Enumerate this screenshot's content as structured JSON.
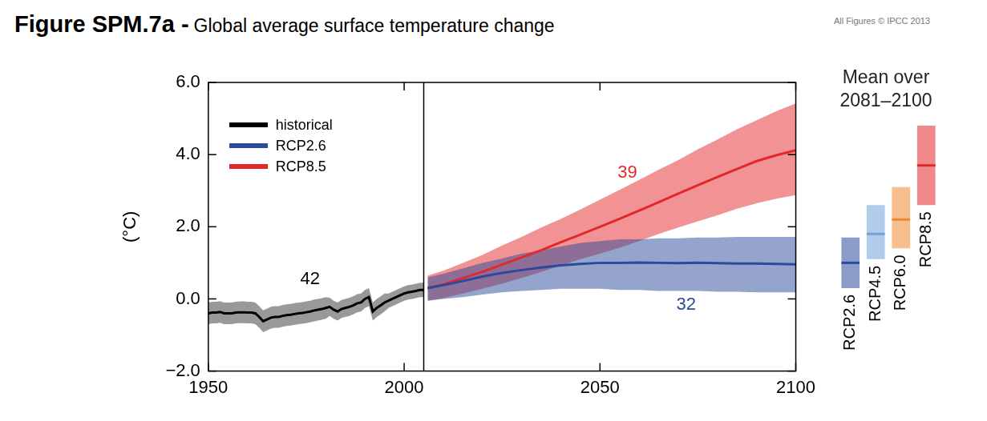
{
  "chart_data": [
    {
      "type": "line",
      "title": "Figure SPM.7a -",
      "subtitle": "Global average surface temperature change",
      "credit": "All Figures © IPCC 2013",
      "y_label": "(°C)",
      "xlim": [
        1950,
        2100
      ],
      "xticks": [
        1950,
        2000,
        2050,
        2100
      ],
      "ylim": [
        -2,
        6
      ],
      "yticks": [
        {
          "value": -2,
          "label": "−2.0"
        },
        {
          "value": 0,
          "label": "0.0"
        },
        {
          "value": 2,
          "label": "2.0"
        },
        {
          "value": 4,
          "label": "4.0"
        },
        {
          "value": 6,
          "label": "6.0"
        }
      ],
      "grid": false,
      "legend": "upper left",
      "divider_x": 2005,
      "annotations": [
        {
          "text": "42",
          "x": 1976,
          "y": 0.55,
          "color": "#000000"
        },
        {
          "text": "39",
          "x": 2057,
          "y": 3.5,
          "color": "#e3282a"
        },
        {
          "text": "32",
          "x": 2072,
          "y": -0.17,
          "color": "#2c4a9c"
        }
      ],
      "series": [
        {
          "name": "historical",
          "color": "#000000",
          "x": [
            1950,
            1951,
            1952,
            1953,
            1954,
            1955,
            1956,
            1957,
            1958,
            1959,
            1960,
            1961,
            1962,
            1963,
            1964,
            1965,
            1966,
            1967,
            1968,
            1969,
            1970,
            1971,
            1972,
            1973,
            1974,
            1975,
            1976,
            1977,
            1978,
            1979,
            1980,
            1981,
            1982,
            1983,
            1984,
            1985,
            1986,
            1987,
            1988,
            1989,
            1990,
            1991,
            1992,
            1993,
            1994,
            1995,
            1996,
            1997,
            1998,
            1999,
            2000,
            2001,
            2002,
            2003,
            2004,
            2005
          ],
          "values": [
            -0.4,
            -0.38,
            -0.38,
            -0.36,
            -0.4,
            -0.4,
            -0.4,
            -0.38,
            -0.37,
            -0.37,
            -0.38,
            -0.38,
            -0.4,
            -0.5,
            -0.62,
            -0.57,
            -0.52,
            -0.5,
            -0.5,
            -0.47,
            -0.45,
            -0.44,
            -0.42,
            -0.4,
            -0.39,
            -0.37,
            -0.35,
            -0.32,
            -0.3,
            -0.28,
            -0.25,
            -0.22,
            -0.3,
            -0.35,
            -0.28,
            -0.25,
            -0.22,
            -0.18,
            -0.12,
            -0.1,
            0.0,
            0.05,
            -0.35,
            -0.25,
            -0.18,
            -0.1,
            -0.05,
            0.0,
            0.05,
            0.1,
            0.15,
            0.18,
            0.2,
            0.22,
            0.25,
            0.25
          ],
          "lower": [
            -0.7,
            -0.68,
            -0.68,
            -0.66,
            -0.7,
            -0.7,
            -0.7,
            -0.68,
            -0.67,
            -0.67,
            -0.68,
            -0.68,
            -0.7,
            -0.8,
            -0.92,
            -0.87,
            -0.82,
            -0.8,
            -0.8,
            -0.77,
            -0.75,
            -0.74,
            -0.72,
            -0.7,
            -0.69,
            -0.67,
            -0.65,
            -0.62,
            -0.6,
            -0.58,
            -0.55,
            -0.47,
            -0.55,
            -0.6,
            -0.53,
            -0.5,
            -0.47,
            -0.43,
            -0.37,
            -0.35,
            -0.25,
            -0.2,
            -0.6,
            -0.5,
            -0.43,
            -0.35,
            -0.25,
            -0.2,
            -0.15,
            -0.1,
            -0.05,
            -0.02,
            0.0,
            0.02,
            0.05,
            0.05
          ],
          "upper": [
            -0.1,
            -0.08,
            -0.08,
            -0.06,
            -0.1,
            -0.1,
            -0.1,
            -0.08,
            -0.07,
            -0.07,
            -0.08,
            -0.08,
            -0.1,
            -0.2,
            -0.32,
            -0.27,
            -0.22,
            -0.2,
            -0.2,
            -0.17,
            -0.15,
            -0.14,
            -0.12,
            -0.1,
            -0.09,
            -0.07,
            -0.05,
            -0.02,
            0.0,
            0.02,
            0.05,
            0.03,
            -0.05,
            -0.1,
            -0.03,
            0.0,
            0.03,
            0.07,
            0.13,
            0.15,
            0.25,
            0.3,
            -0.1,
            0.0,
            0.07,
            0.15,
            0.15,
            0.2,
            0.25,
            0.3,
            0.35,
            0.38,
            0.4,
            0.42,
            0.45,
            0.45
          ]
        },
        {
          "name": "RCP2.6",
          "color": "#2c4a9c",
          "x": [
            2006,
            2010,
            2015,
            2020,
            2025,
            2030,
            2035,
            2040,
            2045,
            2050,
            2055,
            2060,
            2065,
            2070,
            2075,
            2080,
            2085,
            2090,
            2095,
            2100
          ],
          "values": [
            0.3,
            0.38,
            0.5,
            0.62,
            0.72,
            0.8,
            0.87,
            0.93,
            0.97,
            1.0,
            1.0,
            1.01,
            1.0,
            0.99,
            1.0,
            0.99,
            0.98,
            0.98,
            0.97,
            0.96
          ],
          "lower": [
            -0.05,
            0.0,
            0.05,
            0.12,
            0.18,
            0.22,
            0.25,
            0.28,
            0.28,
            0.28,
            0.25,
            0.25,
            0.22,
            0.22,
            0.22,
            0.2,
            0.2,
            0.18,
            0.18,
            0.18
          ],
          "upper": [
            0.6,
            0.7,
            0.85,
            1.0,
            1.12,
            1.25,
            1.35,
            1.45,
            1.55,
            1.6,
            1.65,
            1.65,
            1.68,
            1.68,
            1.7,
            1.7,
            1.72,
            1.72,
            1.72,
            1.72
          ]
        },
        {
          "name": "RCP8.5",
          "color": "#e3282a",
          "x": [
            2006,
            2010,
            2015,
            2020,
            2025,
            2030,
            2035,
            2040,
            2045,
            2050,
            2055,
            2060,
            2065,
            2070,
            2075,
            2080,
            2085,
            2090,
            2095,
            2100
          ],
          "values": [
            0.3,
            0.4,
            0.58,
            0.75,
            0.95,
            1.15,
            1.35,
            1.57,
            1.78,
            2.0,
            2.22,
            2.45,
            2.68,
            2.92,
            3.15,
            3.38,
            3.6,
            3.82,
            3.98,
            4.12
          ],
          "lower": [
            -0.05,
            0.02,
            0.15,
            0.28,
            0.42,
            0.58,
            0.75,
            0.92,
            1.1,
            1.25,
            1.42,
            1.6,
            1.8,
            1.98,
            2.15,
            2.32,
            2.5,
            2.65,
            2.78,
            2.88
          ],
          "upper": [
            0.65,
            0.78,
            1.0,
            1.22,
            1.48,
            1.72,
            1.98,
            2.22,
            2.48,
            2.75,
            3.02,
            3.3,
            3.58,
            3.85,
            4.15,
            4.42,
            4.7,
            4.95,
            5.2,
            5.42
          ]
        }
      ]
    },
    {
      "type": "bar",
      "title": "Mean over 2081–2100",
      "categories": [
        "RCP2.6",
        "RCP4.5",
        "RCP6.0",
        "RCP8.5"
      ],
      "values": [
        [
          0.3,
          1.7
        ],
        [
          1.1,
          2.6
        ],
        [
          1.4,
          3.1
        ],
        [
          2.6,
          4.8
        ]
      ],
      "mean": [
        1.0,
        1.8,
        2.2,
        3.7
      ],
      "colors": [
        "#2c4a9c",
        "#6fa3d8",
        "#f0862f",
        "#e3282a"
      ],
      "ylim": [
        -2,
        6
      ]
    }
  ]
}
